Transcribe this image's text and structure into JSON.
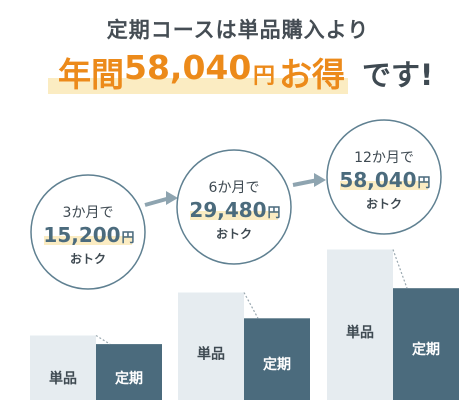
{
  "headline": "定期コースは単品購入より",
  "hero": {
    "prefix": "年間",
    "amount": "58,040",
    "unit": "円",
    "tail": "お得",
    "suffix": "です!"
  },
  "colors": {
    "accent": "#ec8a1a",
    "highlight": "#fbecc2",
    "single_bar": "#e6ecf0",
    "subscription_bar": "#4b6b7d",
    "circle_border": "#5f8091",
    "arrow": "#8ea4b0"
  },
  "chart_data": {
    "type": "bar",
    "categories": [
      "3か月",
      "6か月",
      "12か月"
    ],
    "series": [
      {
        "name": "単品",
        "values": [
          3,
          5,
          7
        ]
      },
      {
        "name": "定期",
        "values": [
          2.6,
          3.8,
          5.2
        ]
      }
    ],
    "savings": [
      {
        "period": "3か月で",
        "amount": "15,200",
        "unit": "円",
        "note": "おトク"
      },
      {
        "period": "6か月で",
        "amount": "29,480",
        "unit": "円",
        "note": "おトク"
      },
      {
        "period": "12か月で",
        "amount": "58,040",
        "unit": "円",
        "note": "おトク"
      }
    ],
    "ylim": [
      0,
      7
    ]
  }
}
